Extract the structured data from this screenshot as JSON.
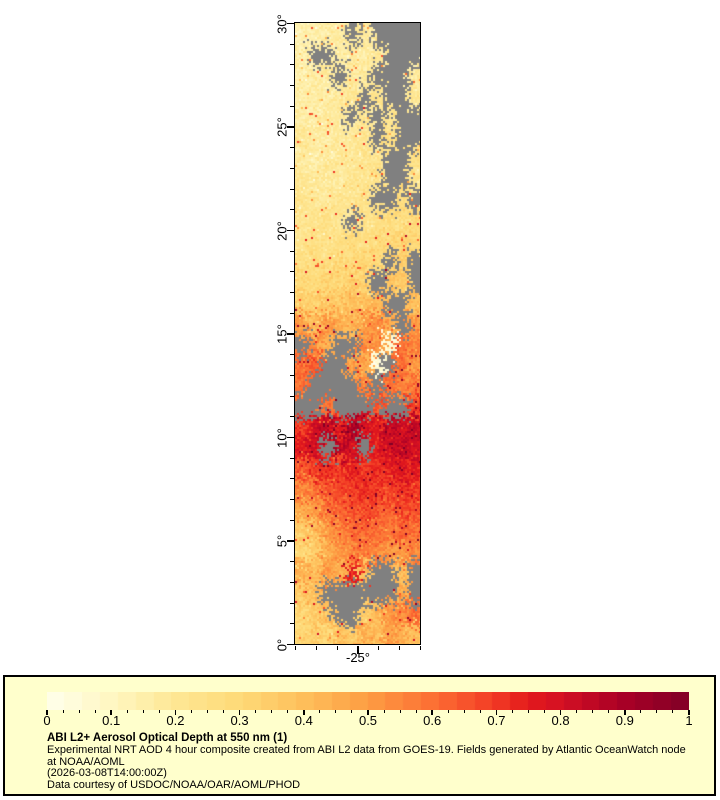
{
  "caption": {
    "title": "ABI L2+ Aerosol Optical Depth at 550 nm (1)",
    "description": "Experimental NRT AOD 4 hour composite created from ABI L2 data from GOES-19. Fields generated by Atlantic OceanWatch node at NOAA/AOML",
    "timestamp": "(2026-03-08T14:00:00Z)",
    "credit": "Data courtesy of USDOC/NOAA/OAR/AOML/PHOD"
  },
  "colors": {
    "page_background": "#FFFFFF",
    "panel_background": "#FFFFCC",
    "frame_border": "#000000",
    "missing_data": "#808080"
  },
  "axes": {
    "y_axis": {
      "tick_labels": [
        "30°",
        "25°",
        "20°",
        "15°",
        "10°",
        "5°",
        "0°"
      ],
      "major_interval_deg": 5,
      "minor_interval_deg": 1
    },
    "x_axis": {
      "tick_labels": [
        "-25°"
      ],
      "labeled_lon": -25,
      "minor_interval_deg": 1
    }
  },
  "colorbar": {
    "tick_labels": [
      "0",
      "0.1",
      "0.2",
      "0.3",
      "0.4",
      "0.5",
      "0.6",
      "0.7",
      "0.8",
      "0.9",
      "1"
    ],
    "tick_values": [
      0,
      0.1,
      0.2,
      0.3,
      0.4,
      0.5,
      0.6,
      0.7,
      0.8,
      0.9,
      1
    ],
    "minor_step": 0.025,
    "segments": 36
  },
  "chart_data": {
    "type": "heatmap",
    "title": "ABI L2+ Aerosol Optical Depth at 550 nm (1)",
    "value_name": "Aerosol Optical Depth at 550 nm",
    "value_range": [
      0,
      1
    ],
    "lat_range": [
      0,
      30
    ],
    "lon_range": [
      -28,
      -22
    ],
    "y_tick_labels": [
      "0°",
      "5°",
      "10°",
      "15°",
      "20°",
      "25°",
      "30°"
    ],
    "x_tick_labels": [
      "-25°"
    ],
    "legend_position": "bottom",
    "missing_value_color": "#808080",
    "colormap_stops": [
      {
        "t": 0.0,
        "c": "#FFFFEC"
      },
      {
        "t": 0.1,
        "c": "#FFF7C2"
      },
      {
        "t": 0.2,
        "c": "#FEE794"
      },
      {
        "t": 0.3,
        "c": "#FEDA78"
      },
      {
        "t": 0.4,
        "c": "#FEBF5B"
      },
      {
        "t": 0.5,
        "c": "#FD9D43"
      },
      {
        "t": 0.6,
        "c": "#FC7034"
      },
      {
        "t": 0.7,
        "c": "#F23924"
      },
      {
        "t": 0.75,
        "c": "#E31A1C"
      },
      {
        "t": 0.8,
        "c": "#D41023"
      },
      {
        "t": 0.9,
        "c": "#A80026"
      },
      {
        "t": 1.0,
        "c": "#800026"
      }
    ],
    "grid": {
      "rows": 30,
      "cols": 10,
      "row_order": "lat 30 (top) to lat 0 (bottom), 1 degree per row",
      "col_order": "lon -28 (left) to lon -22 (right), 0.6 degree per col",
      "note": "approximate AOD values read from raster; null = missing/cloud (gray)",
      "values": [
        [
          0.14,
          0.15,
          0.16,
          0.17,
          null,
          0.18,
          null,
          null,
          null,
          null
        ],
        [
          0.15,
          null,
          null,
          0.16,
          0.18,
          0.16,
          0.2,
          null,
          null,
          null
        ],
        [
          0.15,
          0.16,
          0.18,
          null,
          0.17,
          0.2,
          null,
          null,
          null,
          0.18
        ],
        [
          0.16,
          0.17,
          0.15,
          0.18,
          0.2,
          null,
          0.22,
          null,
          null,
          0.2
        ],
        [
          0.15,
          0.16,
          0.18,
          0.17,
          null,
          0.2,
          null,
          0.22,
          null,
          null
        ],
        [
          0.2,
          0.17,
          0.16,
          0.18,
          0.2,
          0.22,
          null,
          0.25,
          null,
          null
        ],
        [
          0.18,
          0.16,
          0.17,
          0.2,
          0.18,
          0.22,
          0.2,
          null,
          null,
          0.25
        ],
        [
          0.2,
          0.18,
          0.2,
          0.17,
          0.22,
          0.2,
          0.25,
          null,
          null,
          0.22
        ],
        [
          0.22,
          0.2,
          0.18,
          0.22,
          0.2,
          0.25,
          null,
          null,
          0.28,
          null
        ],
        [
          0.2,
          0.22,
          0.25,
          0.2,
          null,
          0.22,
          0.25,
          0.28,
          0.25,
          0.3
        ],
        [
          0.22,
          0.25,
          0.22,
          0.25,
          0.28,
          0.25,
          0.3,
          0.28,
          0.32,
          0.3
        ],
        [
          0.25,
          0.28,
          0.25,
          0.3,
          0.28,
          0.32,
          0.3,
          null,
          0.35,
          null
        ],
        [
          0.3,
          0.28,
          0.32,
          0.3,
          0.35,
          0.32,
          null,
          0.38,
          0.35,
          null
        ],
        [
          0.35,
          0.32,
          0.38,
          0.35,
          0.4,
          0.38,
          0.42,
          null,
          null,
          0.4
        ],
        [
          0.5,
          0.4,
          0.5,
          0.45,
          0.42,
          0.5,
          0.55,
          0.45,
          null,
          0.5
        ],
        [
          null,
          0.55,
          0.45,
          null,
          null,
          0.55,
          0.5,
          0.05,
          0.6,
          0.55
        ],
        [
          0.6,
          0.65,
          null,
          null,
          0.5,
          0.45,
          0.05,
          null,
          0.6,
          0.5
        ],
        [
          0.6,
          null,
          null,
          null,
          null,
          0.55,
          null,
          0.6,
          0.55,
          0.6
        ],
        [
          null,
          null,
          0.6,
          null,
          null,
          null,
          0.65,
          null,
          null,
          0.7
        ],
        [
          0.7,
          0.8,
          0.85,
          0.75,
          0.9,
          0.8,
          0.75,
          0.85,
          0.8,
          0.85
        ],
        [
          0.75,
          0.8,
          null,
          0.85,
          0.8,
          null,
          0.75,
          0.8,
          0.85,
          0.8
        ],
        [
          0.65,
          0.7,
          0.72,
          0.68,
          0.75,
          0.7,
          0.72,
          0.75,
          0.78,
          0.75
        ],
        [
          0.55,
          0.6,
          0.65,
          0.68,
          0.7,
          0.72,
          0.7,
          0.68,
          0.72,
          0.7
        ],
        [
          0.45,
          0.5,
          0.58,
          0.62,
          0.65,
          0.68,
          0.65,
          0.62,
          0.68,
          0.65
        ],
        [
          0.35,
          0.4,
          0.5,
          0.55,
          0.6,
          0.62,
          0.6,
          0.58,
          0.62,
          0.6
        ],
        [
          0.3,
          0.35,
          0.45,
          0.5,
          0.55,
          0.58,
          0.55,
          0.5,
          0.52,
          0.55
        ],
        [
          0.45,
          0.4,
          0.5,
          0.45,
          0.75,
          0.4,
          null,
          null,
          0.4,
          null
        ],
        [
          0.35,
          0.4,
          null,
          null,
          null,
          null,
          null,
          null,
          0.45,
          null
        ],
        [
          0.3,
          0.35,
          0.4,
          null,
          null,
          0.35,
          0.4,
          0.5,
          0.55,
          0.6
        ],
        [
          0.3,
          0.35,
          0.3,
          0.4,
          0.35,
          0.45,
          0.4,
          0.5,
          0.45,
          0.4
        ]
      ]
    }
  }
}
